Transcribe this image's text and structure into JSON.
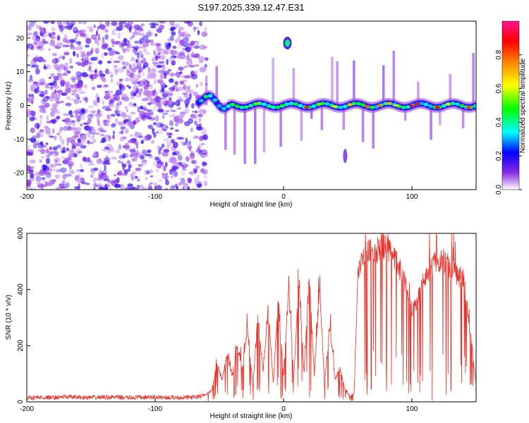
{
  "title": "S197.2025.339.12.47.E31",
  "chart_data": [
    {
      "type": "heatmap",
      "title": "S197.2025.339.12.47.E31",
      "xlabel": "Height of straight line (km)",
      "ylabel": "Frequency (Hz)",
      "xlim": [
        -200,
        150
      ],
      "ylim": [
        -25,
        25
      ],
      "xticks": [
        -200,
        -100,
        0,
        100
      ],
      "yticks": [
        -20,
        -10,
        0,
        10,
        20
      ],
      "colorbar": {
        "label": "Normalized spectral amplitude",
        "range": [
          0,
          1
        ],
        "ticks": [
          0.0,
          0.2,
          0.4,
          0.6,
          0.8
        ],
        "tick_labels": [
          "0.0",
          "0.2",
          "0.4",
          "0.6",
          "0.8"
        ],
        "colormap": [
          "#ffffff",
          "#8a2be2",
          "#0000ff",
          "#00ffff",
          "#00ff00",
          "#ffff00",
          "#ff8000",
          "#ff0000",
          "#ff1493"
        ]
      },
      "features": [
        {
          "name": "diffuse noise",
          "x_range": [
            -200,
            -68
          ],
          "freq_range": [
            -25,
            25
          ],
          "level": "0.1-0.3"
        },
        {
          "name": "main band",
          "x_range": [
            -65,
            150
          ],
          "freq_center": 0,
          "level": "0.2-0.9"
        },
        {
          "name": "high-frequency spot",
          "x": 3,
          "freq": 18.5,
          "level": 0.45
        },
        {
          "name": "low-frequency tail",
          "x": 48,
          "freq": -15,
          "level": 0.15
        }
      ]
    },
    {
      "type": "line",
      "xlabel": "Height of straight line (km)",
      "ylabel": "SNR (10 * v/v)",
      "xlim": [
        -200,
        150
      ],
      "ylim": [
        0,
        600
      ],
      "xticks": [
        -200,
        -100,
        0,
        100
      ],
      "yticks": [
        0,
        200,
        400,
        600
      ],
      "color": "#e8302a",
      "series": [
        {
          "name": "SNR",
          "x": [
            -200,
            -190,
            -180,
            -170,
            -160,
            -150,
            -140,
            -130,
            -120,
            -110,
            -100,
            -90,
            -80,
            -70,
            -62,
            -56,
            -52,
            -48,
            -44,
            -40,
            -36,
            -32,
            -28,
            -24,
            -20,
            -16,
            -12,
            -8,
            -4,
            0,
            4,
            8,
            12,
            16,
            20,
            24,
            28,
            32,
            36,
            40,
            44,
            48,
            52,
            55,
            58,
            60,
            64,
            68,
            72,
            76,
            80,
            84,
            88,
            92,
            96,
            100,
            104,
            108,
            112,
            116,
            120,
            124,
            128,
            132,
            136,
            140,
            144,
            148,
            150
          ],
          "y": [
            15,
            16,
            15,
            18,
            16,
            15,
            17,
            16,
            15,
            16,
            17,
            15,
            16,
            16,
            22,
            40,
            140,
            80,
            170,
            90,
            200,
            120,
            260,
            60,
            300,
            110,
            330,
            70,
            360,
            90,
            420,
            80,
            440,
            100,
            450,
            90,
            410,
            60,
            280,
            80,
            120,
            40,
            20,
            30,
            480,
            500,
            520,
            540,
            530,
            560,
            550,
            520,
            500,
            460,
            400,
            330,
            360,
            420,
            460,
            490,
            500,
            510,
            490,
            470,
            450,
            440,
            300,
            150,
            60
          ]
        }
      ]
    }
  ]
}
